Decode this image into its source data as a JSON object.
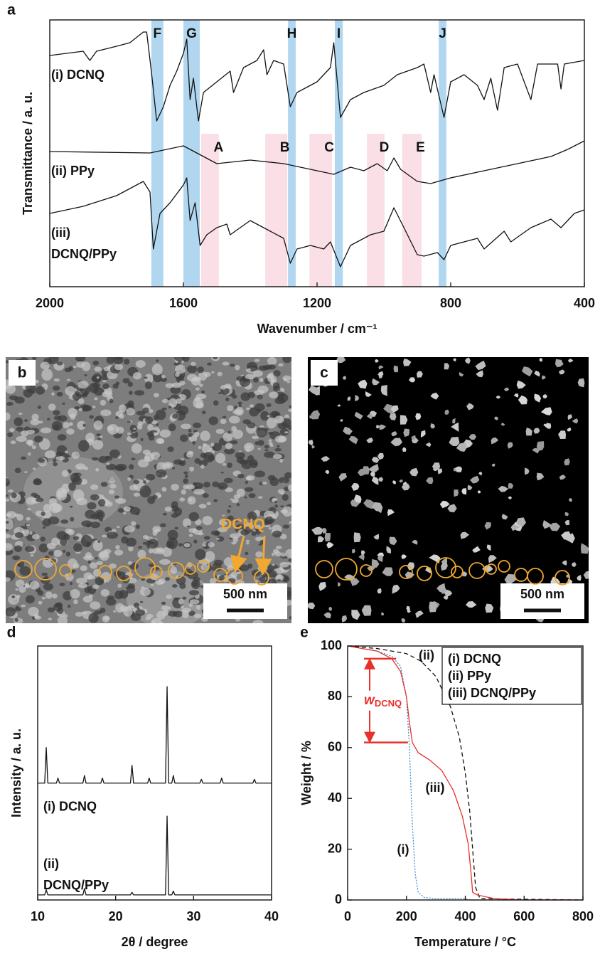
{
  "chart_data": [
    {
      "type": "line",
      "panel_label": "a",
      "x_label": "Wavenumber / cm⁻¹",
      "y_label": "Transmittance / a. u.",
      "xlim": [
        2000,
        400
      ],
      "xticks": [
        2000,
        1600,
        1200,
        800,
        400
      ],
      "ylim": [
        0,
        375
      ],
      "bands": [
        {
          "label": "F",
          "range": [
            1696,
            1660
          ],
          "yrange": [
            0,
            375
          ],
          "color": "#a9d3ee"
        },
        {
          "label": "G",
          "range": [
            1600,
            1551
          ],
          "yrange": [
            0,
            375
          ],
          "color": "#a9d3ee"
        },
        {
          "label": "H",
          "range": [
            1287,
            1264
          ],
          "yrange": [
            0,
            375
          ],
          "color": "#a9d3ee"
        },
        {
          "label": "I",
          "range": [
            1147,
            1123
          ],
          "yrange": [
            0,
            375
          ],
          "color": "#a9d3ee"
        },
        {
          "label": "J",
          "range": [
            836,
            813
          ],
          "yrange": [
            0,
            375
          ],
          "color": "#a9d3ee"
        },
        {
          "label": "A",
          "range": [
            1547,
            1494
          ],
          "yrange": [
            0,
            215
          ],
          "color": "#f9dde3"
        },
        {
          "label": "B",
          "range": [
            1355,
            1289
          ],
          "yrange": [
            0,
            215
          ],
          "color": "#f9dde3"
        },
        {
          "label": "C",
          "range": [
            1223,
            1155
          ],
          "yrange": [
            0,
            215
          ],
          "color": "#f9dde3"
        },
        {
          "label": "D",
          "range": [
            1051,
            998
          ],
          "yrange": [
            0,
            215
          ],
          "color": "#f9dde3"
        },
        {
          "label": "E",
          "range": [
            945,
            887
          ],
          "yrange": [
            0,
            215
          ],
          "color": "#f9dde3"
        }
      ],
      "series": [
        {
          "name": "(i) DCNQ",
          "color": "#111111",
          "x": [
            2000,
            1900,
            1880,
            1860,
            1800,
            1760,
            1720,
            1710,
            1696,
            1680,
            1660,
            1640,
            1620,
            1600,
            1590,
            1580,
            1570,
            1555,
            1540,
            1500,
            1460,
            1450,
            1420,
            1380,
            1360,
            1350,
            1330,
            1300,
            1280,
            1260,
            1240,
            1200,
            1160,
            1150,
            1130,
            1100,
            1060,
            1000,
            960,
            900,
            880,
            860,
            850,
            820,
            800,
            760,
            720,
            700,
            680,
            660,
            640,
            600,
            560,
            540,
            480,
            470,
            460,
            400
          ],
          "values": [
            325,
            331,
            318,
            331,
            338,
            343,
            358,
            358,
            303,
            233,
            253,
            283,
            303,
            328,
            348,
            263,
            293,
            233,
            273,
            288,
            303,
            273,
            308,
            318,
            333,
            298,
            318,
            313,
            253,
            273,
            278,
            288,
            308,
            343,
            238,
            263,
            273,
            283,
            298,
            308,
            313,
            273,
            298,
            238,
            288,
            298,
            283,
            263,
            293,
            248,
            308,
            313,
            263,
            313,
            313,
            278,
            313,
            318
          ]
        },
        {
          "name": "(ii) PPy",
          "color": "#111111",
          "x": [
            2000,
            1700,
            1600,
            1540,
            1500,
            1400,
            1300,
            1200,
            1150,
            1100,
            1060,
            1020,
            990,
            970,
            950,
            900,
            860,
            800,
            700,
            600,
            500,
            450,
            400
          ],
          "values": [
            190,
            188,
            198,
            183,
            173,
            178,
            173,
            163,
            158,
            168,
            163,
            173,
            163,
            181,
            165,
            148,
            145,
            153,
            163,
            173,
            183,
            193,
            205
          ]
        },
        {
          "name": "(iii) DCNQ/PPy",
          "color": "#111111",
          "x": [
            2000,
            1900,
            1800,
            1720,
            1700,
            1690,
            1670,
            1640,
            1600,
            1590,
            1580,
            1565,
            1550,
            1530,
            1500,
            1470,
            1460,
            1400,
            1340,
            1300,
            1280,
            1260,
            1220,
            1180,
            1160,
            1130,
            1100,
            1040,
            1000,
            970,
            940,
            900,
            880,
            840,
            820,
            800,
            720,
            700,
            640,
            620,
            560,
            500,
            470,
            430,
            400
          ],
          "values": [
            103,
            113,
            128,
            148,
            133,
            53,
            103,
            118,
            143,
            153,
            93,
            118,
            58,
            73,
            83,
            88,
            73,
            93,
            78,
            68,
            33,
            53,
            58,
            53,
            63,
            28,
            58,
            73,
            78,
            111,
            83,
            45,
            43,
            48,
            38,
            58,
            68,
            53,
            78,
            63,
            83,
            95,
            83,
            103,
            108
          ]
        }
      ]
    },
    {
      "type": "line",
      "panel_label": "d",
      "x_label": "2θ / degree",
      "y_label": "Intensity / a. u.",
      "xlim": [
        10,
        40
      ],
      "xticks": [
        10,
        20,
        30,
        40
      ],
      "ylim": [
        0,
        100
      ],
      "series": [
        {
          "name": "(i) DCNQ",
          "color": "#111111",
          "x": [
            10,
            10.9,
            11.1,
            11.3,
            12.4,
            12.6,
            12.8,
            15.8,
            16,
            16.2,
            18.1,
            18.3,
            18.5,
            21.9,
            22.1,
            22.3,
            24.1,
            24.3,
            24.5,
            26.4,
            26.6,
            26.8,
            27.2,
            27.4,
            27.6,
            30.8,
            31,
            31.2,
            33.4,
            33.6,
            33.8,
            37.6,
            37.8,
            38,
            40
          ],
          "values": [
            46,
            46,
            60,
            46,
            46,
            48,
            46,
            46,
            49,
            46,
            46,
            48,
            46,
            46,
            53,
            46,
            46,
            48,
            46,
            46,
            84,
            46,
            46,
            49,
            46,
            46,
            47.5,
            46,
            46,
            48,
            46,
            46,
            47.5,
            46,
            46
          ]
        },
        {
          "name": "(ii) DCNQ/PPy",
          "color": "#111111",
          "x": [
            10,
            10.9,
            11.1,
            11.3,
            15.8,
            16,
            16.2,
            21.9,
            22.1,
            22.3,
            26.4,
            26.6,
            26.8,
            27.2,
            27.4,
            27.6,
            40
          ],
          "values": [
            2,
            2,
            4,
            2,
            2,
            4.5,
            2,
            2,
            3,
            2,
            2,
            33,
            2,
            2,
            3.5,
            2,
            2
          ]
        }
      ]
    },
    {
      "type": "line",
      "panel_label": "e",
      "x_label": "Temperature / °C",
      "y_label": "Weight / %",
      "xlim": [
        0,
        800
      ],
      "xticks": [
        0,
        200,
        400,
        600,
        800
      ],
      "ylim": [
        0,
        100
      ],
      "yticks": [
        0,
        20,
        40,
        60,
        80,
        100
      ],
      "legend": "top-right",
      "curve_labels": [
        "(i)",
        "(ii)",
        "(iii)"
      ],
      "w_annotation": {
        "text": "w",
        "subscript": "DCNQ",
        "x": 75,
        "from": 95,
        "to": 62,
        "color": "#e8302a"
      },
      "series": [
        {
          "name": "(i) DCNQ",
          "color": "#3f8fd0",
          "dash": "dotted",
          "x": [
            0,
            100,
            150,
            180,
            200,
            210,
            220,
            230,
            240,
            260,
            300,
            400,
            420,
            800
          ],
          "values": [
            100,
            98,
            96,
            92,
            80,
            60,
            30,
            10,
            3,
            1,
            0.5,
            0.5,
            0,
            0
          ]
        },
        {
          "name": "(ii) PPy",
          "color": "#111111",
          "dash": "dashed",
          "x": [
            0,
            100,
            200,
            250,
            300,
            350,
            380,
            400,
            415,
            425,
            435,
            450,
            800
          ],
          "values": [
            100,
            99,
            97,
            94,
            88,
            76,
            64,
            50,
            35,
            20,
            5,
            0.5,
            0
          ]
        },
        {
          "name": "(iii) DCNQ/PPy",
          "color": "#e8302a",
          "dash": "solid",
          "x": [
            0,
            100,
            150,
            180,
            200,
            210,
            220,
            240,
            280,
            320,
            360,
            390,
            410,
            420,
            425,
            440,
            500,
            600,
            800
          ],
          "values": [
            100,
            98,
            95,
            90,
            80,
            70,
            62,
            58,
            55,
            51,
            43,
            33,
            22,
            10,
            3,
            2,
            0.5,
            0,
            0
          ]
        }
      ]
    }
  ],
  "images": [
    {
      "panel_label": "b",
      "annotation": "DCNQ",
      "scale_bar": "500 nm"
    },
    {
      "panel_label": "c",
      "scale_bar": "500 nm"
    }
  ]
}
